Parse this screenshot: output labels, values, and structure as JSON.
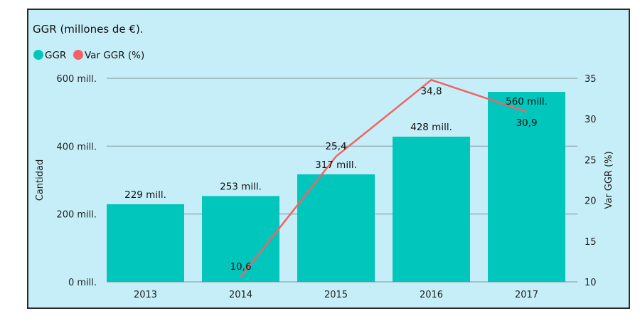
{
  "chart_data": {
    "type": "bar+line",
    "title": "GGR  (millones de €).",
    "categories": [
      "2013",
      "2014",
      "2015",
      "2016",
      "2017"
    ],
    "series": [
      {
        "name": "GGR",
        "type": "bar",
        "axis": "left",
        "color": "#00c6bc",
        "values": [
          229,
          253,
          317,
          428,
          560
        ],
        "labels": [
          "229 mill.",
          "253 mill.",
          "317 mill.",
          "428 mill.",
          "560 mill."
        ]
      },
      {
        "name": "Var GGR (%)",
        "type": "line",
        "axis": "right",
        "color": "#f06464",
        "values": [
          null,
          10.6,
          25.4,
          34.8,
          30.9
        ],
        "labels": [
          "",
          "10,6",
          "25,4",
          "34,8",
          "30,9"
        ]
      }
    ],
    "ylabel": "Cantidad",
    "y2label": "Var GGR (%)",
    "ylim": [
      0,
      600
    ],
    "y2lim": [
      10,
      35
    ],
    "yticks": [
      "0 mill.",
      "200 mill.",
      "400 mill.",
      "600 mill."
    ],
    "ytick_values": [
      0,
      200,
      400,
      600
    ],
    "y2ticks": [
      "10",
      "15",
      "20",
      "25",
      "30",
      "35"
    ],
    "y2tick_values": [
      10,
      15,
      20,
      25,
      30,
      35
    ],
    "grid": true,
    "legend": "top-left",
    "background": "#c6eef8"
  }
}
